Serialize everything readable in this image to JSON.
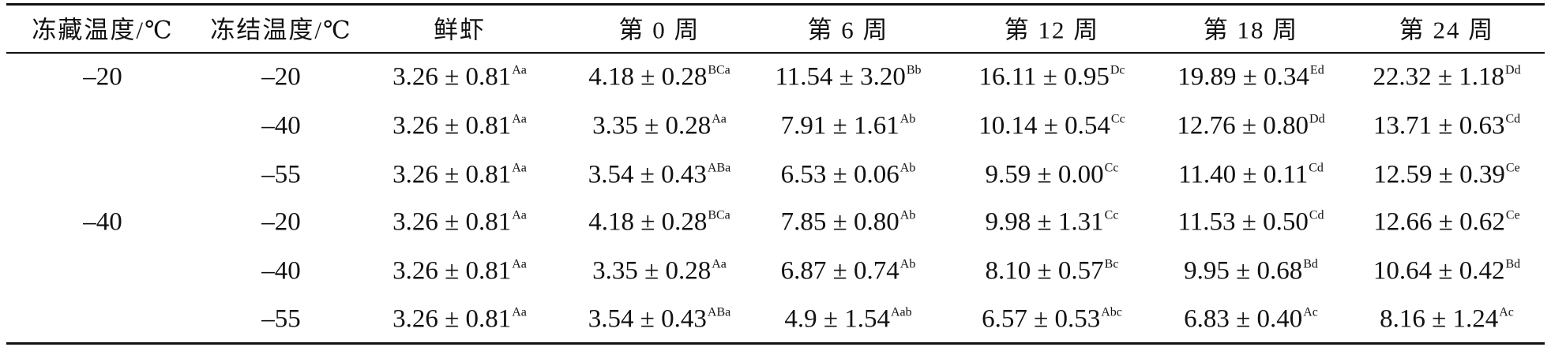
{
  "table": {
    "header": [
      "冻藏温度/℃",
      "冻结温度/℃",
      "鲜虾",
      "第 0 周",
      "第 6 周",
      "第 12 周",
      "第 18 周",
      "第 24 周"
    ],
    "groups": [
      {
        "storage": "–20",
        "rows": [
          {
            "freeze": "–20",
            "cells": [
              {
                "value": "3.26 ± 0.81",
                "sup": "Aa"
              },
              {
                "value": "4.18 ± 0.28",
                "sup": "BCa"
              },
              {
                "value": "11.54 ± 3.20",
                "sup": "Bb"
              },
              {
                "value": "16.11 ± 0.95",
                "sup": "Dc"
              },
              {
                "value": "19.89 ± 0.34",
                "sup": "Ed"
              },
              {
                "value": "22.32 ± 1.18",
                "sup": "Dd"
              }
            ]
          },
          {
            "freeze": "–40",
            "cells": [
              {
                "value": "3.26 ± 0.81",
                "sup": "Aa"
              },
              {
                "value": "3.35 ± 0.28",
                "sup": "Aa"
              },
              {
                "value": "7.91 ± 1.61",
                "sup": "Ab"
              },
              {
                "value": "10.14 ± 0.54",
                "sup": "Cc"
              },
              {
                "value": "12.76 ± 0.80",
                "sup": "Dd"
              },
              {
                "value": "13.71 ± 0.63",
                "sup": "Cd"
              }
            ]
          },
          {
            "freeze": "–55",
            "cells": [
              {
                "value": "3.26 ± 0.81",
                "sup": "Aa"
              },
              {
                "value": "3.54 ± 0.43",
                "sup": "ABa"
              },
              {
                "value": "6.53 ± 0.06",
                "sup": "Ab"
              },
              {
                "value": "9.59 ± 0.00",
                "sup": "Cc"
              },
              {
                "value": "11.40 ± 0.11",
                "sup": "Cd"
              },
              {
                "value": "12.59 ± 0.39",
                "sup": "Ce"
              }
            ]
          }
        ]
      },
      {
        "storage": "–40",
        "rows": [
          {
            "freeze": "–20",
            "cells": [
              {
                "value": "3.26 ± 0.81",
                "sup": "Aa"
              },
              {
                "value": "4.18 ± 0.28",
                "sup": "BCa"
              },
              {
                "value": "7.85 ± 0.80",
                "sup": "Ab"
              },
              {
                "value": "9.98 ± 1.31",
                "sup": "Cc"
              },
              {
                "value": "11.53 ± 0.50",
                "sup": "Cd"
              },
              {
                "value": "12.66 ± 0.62",
                "sup": "Ce"
              }
            ]
          },
          {
            "freeze": "–40",
            "cells": [
              {
                "value": "3.26 ± 0.81",
                "sup": "Aa"
              },
              {
                "value": "3.35 ± 0.28",
                "sup": "Aa"
              },
              {
                "value": "6.87 ± 0.74",
                "sup": "Ab"
              },
              {
                "value": "8.10 ± 0.57",
                "sup": "Bc"
              },
              {
                "value": "9.95 ± 0.68",
                "sup": "Bd"
              },
              {
                "value": "10.64 ± 0.42",
                "sup": "Bd"
              }
            ]
          },
          {
            "freeze": "–55",
            "cells": [
              {
                "value": "3.26 ± 0.81",
                "sup": "Aa"
              },
              {
                "value": "3.54 ± 0.43",
                "sup": "ABa"
              },
              {
                "value": "4.9 ± 1.54",
                "sup": "Aab"
              },
              {
                "value": "6.57 ± 0.53",
                "sup": "Abc"
              },
              {
                "value": "6.83 ± 0.40",
                "sup": "Ac"
              },
              {
                "value": "8.16 ± 1.24",
                "sup": "Ac"
              }
            ]
          }
        ]
      }
    ]
  }
}
